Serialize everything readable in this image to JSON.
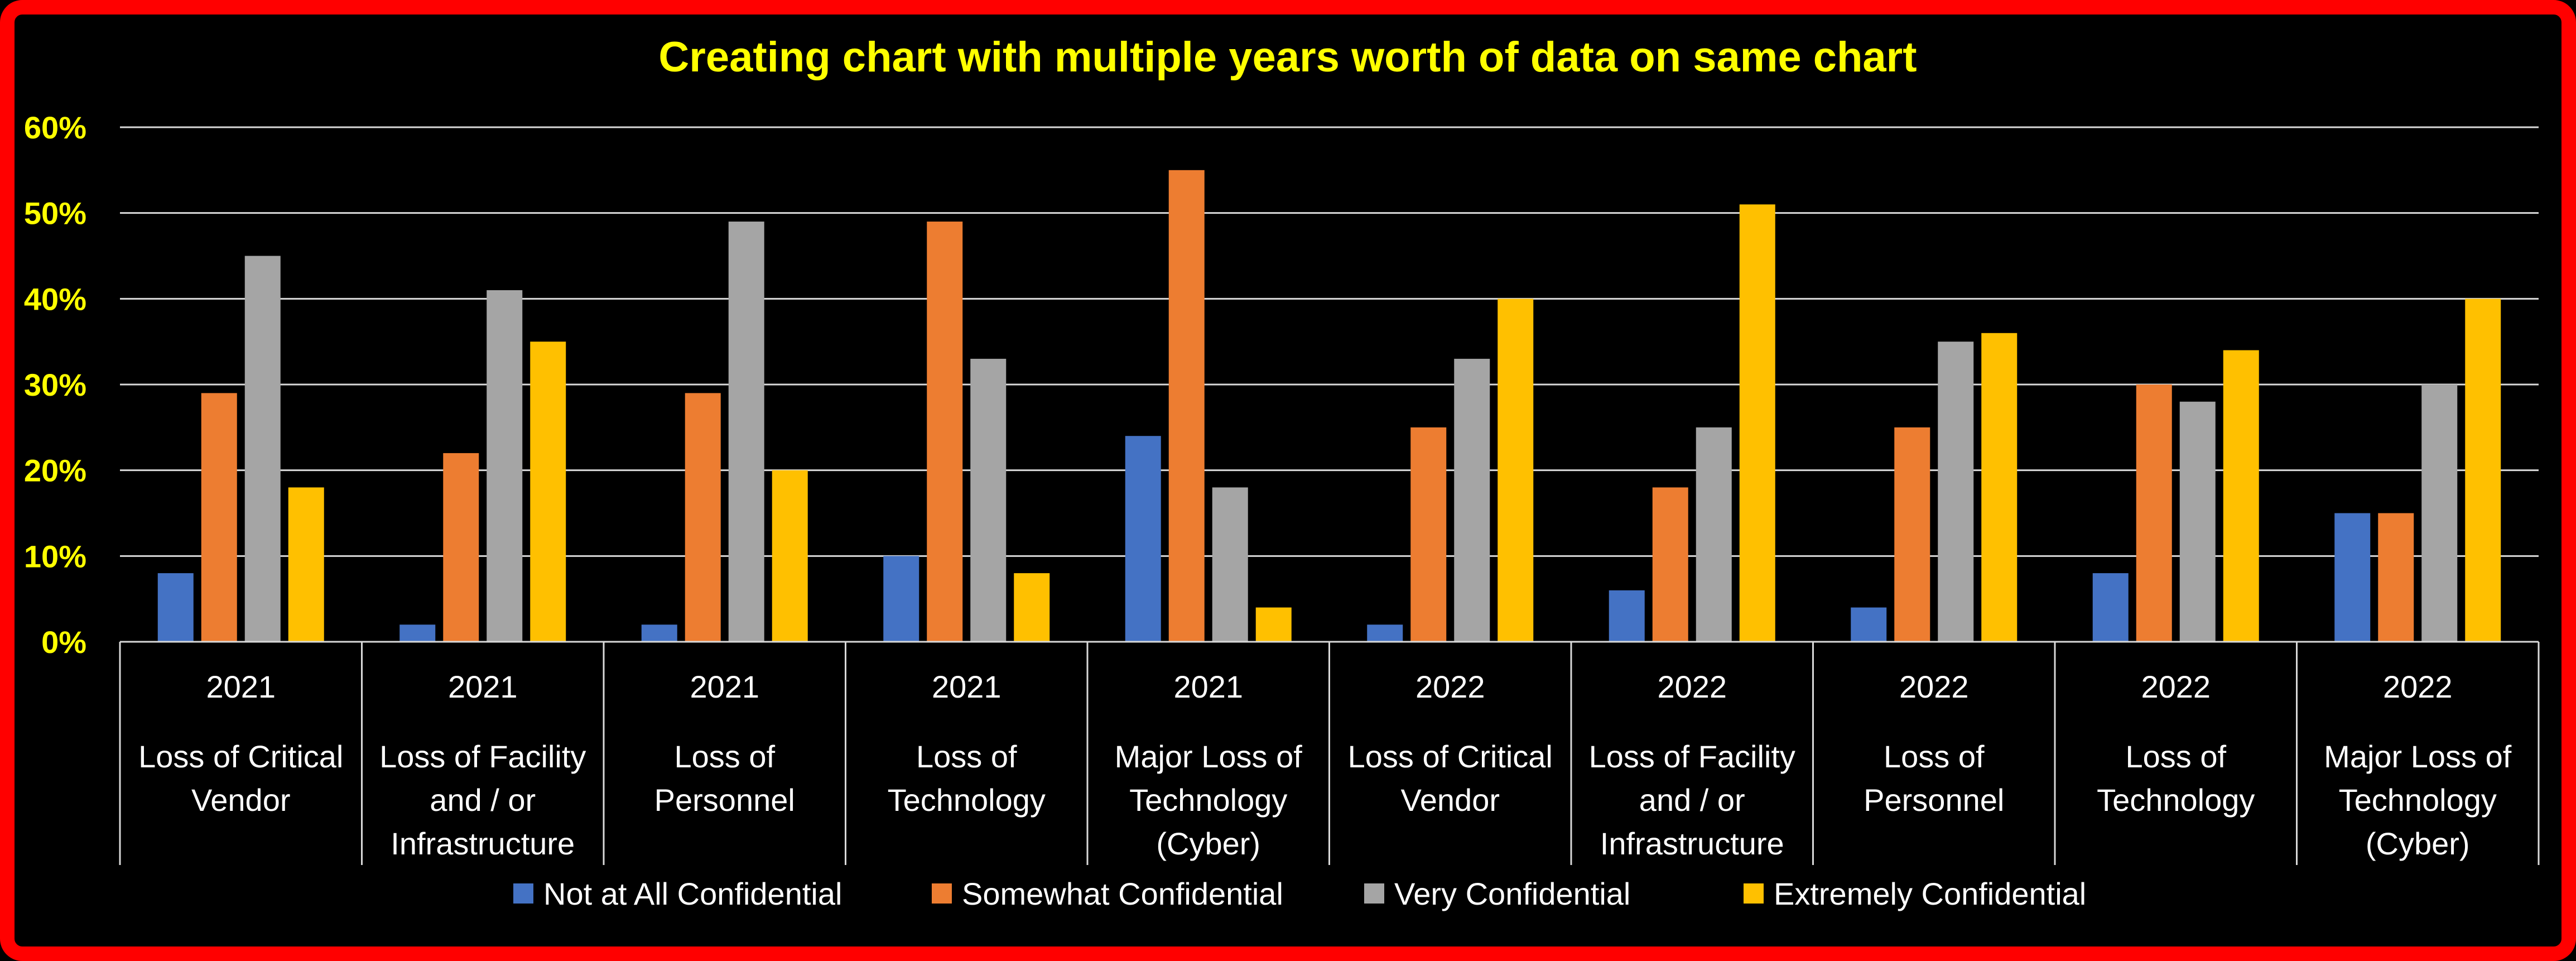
{
  "chart_data": {
    "type": "bar",
    "title": "Creating chart with multiple years worth of data on same chart",
    "xlabel": "",
    "ylabel": "",
    "ylim": [
      0,
      0.6
    ],
    "y_ticks": [
      "0%",
      "10%",
      "20%",
      "30%",
      "40%",
      "50%",
      "60%"
    ],
    "grid": true,
    "legend_position": "bottom",
    "categories": [
      {
        "year": "2021",
        "label_lines": [
          "Loss of Critical",
          "Vendor"
        ]
      },
      {
        "year": "2021",
        "label_lines": [
          "Loss of Facility",
          "and / or",
          "Infrastructure"
        ]
      },
      {
        "year": "2021",
        "label_lines": [
          "Loss of",
          "Personnel"
        ]
      },
      {
        "year": "2021",
        "label_lines": [
          "Loss of",
          "Technology"
        ]
      },
      {
        "year": "2021",
        "label_lines": [
          "Major Loss of",
          "Technology",
          "(Cyber)"
        ]
      },
      {
        "year": "2022",
        "label_lines": [
          "Loss of Critical",
          "Vendor"
        ]
      },
      {
        "year": "2022",
        "label_lines": [
          "Loss of Facility",
          "and / or",
          "Infrastructure"
        ]
      },
      {
        "year": "2022",
        "label_lines": [
          "Loss of",
          "Personnel"
        ]
      },
      {
        "year": "2022",
        "label_lines": [
          "Loss of",
          "Technology"
        ]
      },
      {
        "year": "2022",
        "label_lines": [
          "Major Loss of",
          "Technology",
          "(Cyber)"
        ]
      }
    ],
    "series": [
      {
        "name": "Not at All Confidential",
        "color": "#4472c4",
        "values": [
          0.08,
          0.02,
          0.02,
          0.1,
          0.24,
          0.02,
          0.06,
          0.04,
          0.08,
          0.15
        ]
      },
      {
        "name": "Somewhat Confidential",
        "color": "#ed7d31",
        "values": [
          0.29,
          0.22,
          0.29,
          0.49,
          0.55,
          0.25,
          0.18,
          0.25,
          0.3,
          0.15
        ]
      },
      {
        "name": "Very Confidential",
        "color": "#a5a5a5",
        "values": [
          0.45,
          0.41,
          0.49,
          0.33,
          0.18,
          0.33,
          0.25,
          0.35,
          0.28,
          0.3
        ]
      },
      {
        "name": "Extremely Confidential",
        "color": "#ffc000",
        "values": [
          0.18,
          0.35,
          0.2,
          0.08,
          0.04,
          0.4,
          0.51,
          0.36,
          0.34,
          0.4
        ]
      }
    ]
  },
  "colors": {
    "background": "#000000",
    "border": "#ff0000",
    "title": "#ffff00",
    "y_axis_text": "#ffff00",
    "category_text": "#ffffff",
    "gridline": "#d9d9d9"
  }
}
